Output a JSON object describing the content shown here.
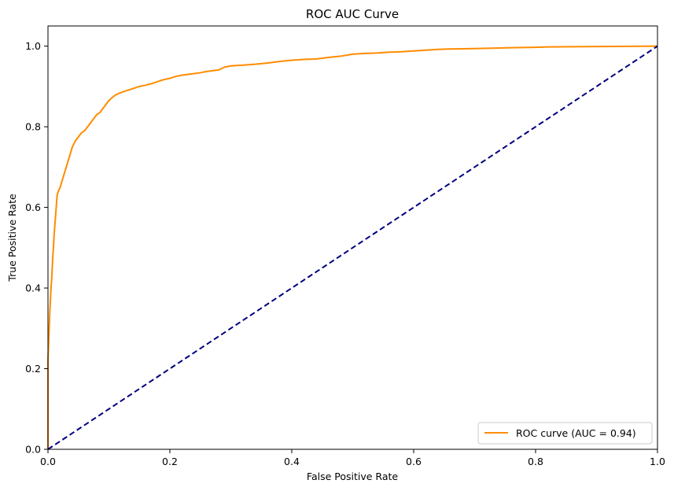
{
  "chart_data": {
    "type": "line",
    "title": "ROC AUC Curve",
    "xlabel": "False Positive Rate",
    "ylabel": "True Positive Rate",
    "xlim": [
      0.0,
      1.0
    ],
    "ylim": [
      0.0,
      1.05
    ],
    "grid": false,
    "legend_position": "lower-right",
    "x_ticks": [
      "0.0",
      "0.2",
      "0.4",
      "0.6",
      "0.8",
      "1.0"
    ],
    "y_ticks": [
      "0.0",
      "0.2",
      "0.4",
      "0.6",
      "0.8",
      "1.0"
    ],
    "series": [
      {
        "name": "ROC curve (AUC = 0.94)",
        "color": "#ff8c00",
        "style": "solid",
        "x": [
          0.0,
          0.0,
          0.002,
          0.003,
          0.004,
          0.005,
          0.006,
          0.007,
          0.008,
          0.009,
          0.01,
          0.011,
          0.012,
          0.013,
          0.014,
          0.015,
          0.017,
          0.02,
          0.024,
          0.028,
          0.032,
          0.036,
          0.04,
          0.045,
          0.05,
          0.055,
          0.06,
          0.065,
          0.07,
          0.075,
          0.08,
          0.085,
          0.09,
          0.095,
          0.1,
          0.105,
          0.11,
          0.115,
          0.12,
          0.13,
          0.14,
          0.15,
          0.16,
          0.17,
          0.18,
          0.19,
          0.2,
          0.21,
          0.22,
          0.23,
          0.24,
          0.25,
          0.26,
          0.27,
          0.28,
          0.29,
          0.3,
          0.32,
          0.34,
          0.36,
          0.38,
          0.4,
          0.42,
          0.44,
          0.46,
          0.48,
          0.5,
          0.52,
          0.54,
          0.56,
          0.58,
          0.6,
          0.62,
          0.64,
          0.66,
          0.7,
          0.76,
          0.8,
          0.82,
          0.9,
          1.0
        ],
        "y": [
          0.0,
          0.22,
          0.3,
          0.34,
          0.37,
          0.4,
          0.42,
          0.45,
          0.48,
          0.5,
          0.53,
          0.55,
          0.57,
          0.59,
          0.61,
          0.63,
          0.64,
          0.65,
          0.67,
          0.69,
          0.71,
          0.73,
          0.75,
          0.765,
          0.775,
          0.785,
          0.79,
          0.8,
          0.81,
          0.82,
          0.83,
          0.835,
          0.845,
          0.855,
          0.865,
          0.872,
          0.878,
          0.882,
          0.885,
          0.89,
          0.895,
          0.9,
          0.903,
          0.907,
          0.912,
          0.917,
          0.92,
          0.925,
          0.928,
          0.93,
          0.932,
          0.934,
          0.937,
          0.939,
          0.941,
          0.948,
          0.951,
          0.953,
          0.955,
          0.958,
          0.962,
          0.965,
          0.967,
          0.968,
          0.972,
          0.975,
          0.98,
          0.982,
          0.983,
          0.985,
          0.986,
          0.988,
          0.99,
          0.992,
          0.993,
          0.994,
          0.996,
          0.997,
          0.998,
          0.999,
          1.0
        ]
      },
      {
        "name": "",
        "color": "#000080",
        "style": "dashed",
        "x": [
          0.0,
          1.0
        ],
        "y": [
          0.0,
          1.0
        ]
      }
    ]
  }
}
